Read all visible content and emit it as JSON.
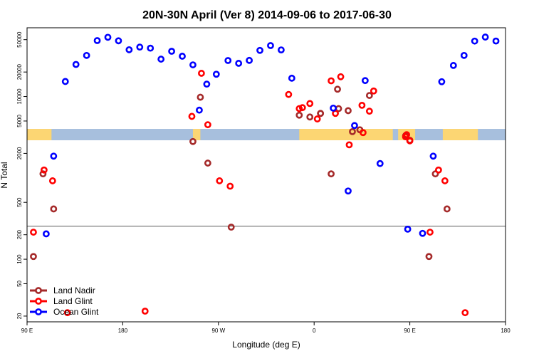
{
  "chart_data": {
    "type": "scatter",
    "title": "20N-30N April (Ver 8)   2014-09-06 to 2017-06-30",
    "xlabel": "Longitude (deg E)",
    "ylabel": "N Total",
    "x_scale": "linear",
    "y_scale": "log",
    "xlim": [
      90,
      540
    ],
    "ylim": [
      17,
      70000
    ],
    "x_ticks": [
      {
        "value": 90,
        "label": "90 E"
      },
      {
        "value": 180,
        "label": "180"
      },
      {
        "value": 270,
        "label": "90 W"
      },
      {
        "value": 360,
        "label": "0"
      },
      {
        "value": 450,
        "label": "90 E"
      },
      {
        "value": 540,
        "label": "180"
      }
    ],
    "y_ticks": [
      {
        "value": 20,
        "label": "20"
      },
      {
        "value": 50,
        "label": "50"
      },
      {
        "value": 100,
        "label": "100"
      },
      {
        "value": 200,
        "label": "200"
      },
      {
        "value": 500,
        "label": "500"
      },
      {
        "value": 2000,
        "label": "2000"
      },
      {
        "value": 5000,
        "label": "5000"
      },
      {
        "value": 10000,
        "label": "10000"
      },
      {
        "value": 20000,
        "label": "20000"
      },
      {
        "value": 50000,
        "label": "50000"
      }
    ],
    "reference_line_y": 255,
    "map_band": {
      "y_top": 4000,
      "y_bottom": 2900,
      "ocean_color": "#a7bfdd",
      "land_color": "#fcd673"
    },
    "legend_position": "bottom-left",
    "series": [
      {
        "name": "Land Nadir",
        "color": "#a52a2a",
        "points": [
          [
            96,
            108
          ],
          [
            105,
            1120
          ],
          [
            115,
            415
          ],
          [
            246,
            2800
          ],
          [
            253,
            9800
          ],
          [
            260,
            1520
          ],
          [
            282,
            248
          ],
          [
            346,
            5900
          ],
          [
            356,
            5600
          ],
          [
            366,
            6200
          ],
          [
            366,
            6200
          ],
          [
            376,
            1120
          ],
          [
            382,
            12300
          ],
          [
            383,
            7100
          ],
          [
            392,
            6700
          ],
          [
            396,
            3700
          ],
          [
            403,
            3900
          ],
          [
            412,
            10300
          ],
          [
            446,
            3300
          ],
          [
            450,
            2900
          ],
          [
            468,
            108
          ],
          [
            474,
            1120
          ],
          [
            485,
            415
          ]
        ]
      },
      {
        "name": "Land Glint",
        "color": "#ff0000",
        "points": [
          [
            96,
            215
          ],
          [
            106,
            1250
          ],
          [
            114,
            920
          ],
          [
            128,
            22
          ],
          [
            201,
            23
          ],
          [
            245,
            5700
          ],
          [
            254,
            19300
          ],
          [
            260,
            4500
          ],
          [
            271,
            920
          ],
          [
            281,
            790
          ],
          [
            336,
            10600
          ],
          [
            346,
            7100
          ],
          [
            349,
            7300
          ],
          [
            356,
            8200
          ],
          [
            363,
            5300
          ],
          [
            376,
            15600
          ],
          [
            380,
            6200
          ],
          [
            385,
            17500
          ],
          [
            393,
            2550
          ],
          [
            405,
            7800
          ],
          [
            406,
            3600
          ],
          [
            412,
            6600
          ],
          [
            416,
            11700
          ],
          [
            446,
            3200
          ],
          [
            447,
            3400
          ],
          [
            450,
            2850
          ],
          [
            469,
            215
          ],
          [
            477,
            1250
          ],
          [
            483,
            920
          ],
          [
            502,
            22
          ]
        ]
      },
      {
        "name": "Ocean Glint",
        "color": "#0000ff",
        "points": [
          [
            108,
            205
          ],
          [
            115,
            1850
          ],
          [
            126,
            15300
          ],
          [
            136,
            24800
          ],
          [
            146,
            32000
          ],
          [
            156,
            48700
          ],
          [
            166,
            53500
          ],
          [
            176,
            48400
          ],
          [
            186,
            37600
          ],
          [
            196,
            40500
          ],
          [
            206,
            39300
          ],
          [
            216,
            28800
          ],
          [
            226,
            36000
          ],
          [
            236,
            31300
          ],
          [
            246,
            24500
          ],
          [
            252,
            6800
          ],
          [
            259,
            14200
          ],
          [
            268,
            18800
          ],
          [
            279,
            27700
          ],
          [
            289,
            25600
          ],
          [
            299,
            27800
          ],
          [
            309,
            36900
          ],
          [
            319,
            42300
          ],
          [
            329,
            37400
          ],
          [
            339,
            16800
          ],
          [
            378,
            7200
          ],
          [
            392,
            690
          ],
          [
            398,
            4400
          ],
          [
            408,
            15700
          ],
          [
            422,
            1500
          ],
          [
            448,
            234
          ],
          [
            462,
            208
          ],
          [
            472,
            1850
          ],
          [
            480,
            15200
          ],
          [
            491,
            24100
          ],
          [
            501,
            32000
          ],
          [
            511,
            48000
          ],
          [
            521,
            53800
          ],
          [
            531,
            48100
          ]
        ]
      }
    ]
  }
}
